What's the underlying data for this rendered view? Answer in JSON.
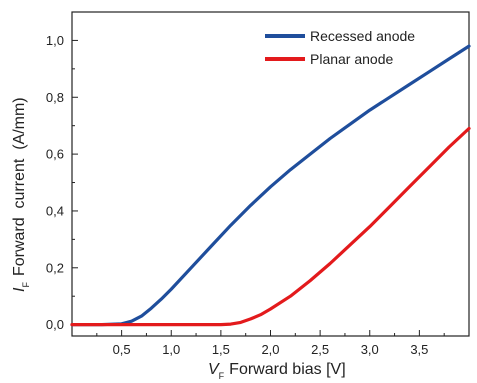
{
  "chart_data": {
    "type": "line",
    "xlabel": {
      "symbol": "V",
      "subscript": "F",
      "text": "Forward bias [V]"
    },
    "ylabel": {
      "symbol": "I",
      "subscript": "F",
      "text": "Forward  current  (A/mm)"
    },
    "xlim": [
      0,
      4.0
    ],
    "ylim": [
      -0.04,
      1.1
    ],
    "x_ticks": [
      0.5,
      1.0,
      1.5,
      2.0,
      2.5,
      3.0,
      3.5
    ],
    "x_tick_labels": [
      "0,5",
      "1,0",
      "1,5",
      "2,0",
      "2,5",
      "3,0",
      "3,5"
    ],
    "y_ticks": [
      0.0,
      0.2,
      0.4,
      0.6,
      0.8,
      1.0
    ],
    "y_tick_labels": [
      "0,0",
      "0,2",
      "0,4",
      "0,6",
      "0,8",
      "1,0"
    ],
    "grid": false,
    "legend_position": "top-right",
    "series": [
      {
        "name": "Recessed anode",
        "color": "#1f4e9c",
        "x": [
          0,
          0.3,
          0.5,
          0.6,
          0.7,
          0.8,
          0.9,
          1.0,
          1.2,
          1.4,
          1.6,
          1.8,
          2.0,
          2.2,
          2.4,
          2.6,
          2.8,
          3.0,
          3.2,
          3.4,
          3.6,
          3.8,
          4.0
        ],
        "y": [
          0.0,
          0.0,
          0.003,
          0.012,
          0.03,
          0.058,
          0.09,
          0.125,
          0.2,
          0.275,
          0.35,
          0.42,
          0.485,
          0.545,
          0.6,
          0.655,
          0.705,
          0.755,
          0.8,
          0.845,
          0.89,
          0.935,
          0.98
        ]
      },
      {
        "name": "Planar anode",
        "color": "#e31a1c",
        "x": [
          0,
          1.2,
          1.5,
          1.6,
          1.7,
          1.8,
          1.9,
          2.0,
          2.2,
          2.4,
          2.6,
          2.8,
          3.0,
          3.2,
          3.4,
          3.6,
          3.8,
          4.0
        ],
        "y": [
          0.0,
          0.0,
          0.0,
          0.002,
          0.008,
          0.02,
          0.035,
          0.055,
          0.1,
          0.155,
          0.215,
          0.28,
          0.345,
          0.415,
          0.485,
          0.555,
          0.625,
          0.69
        ]
      }
    ]
  }
}
